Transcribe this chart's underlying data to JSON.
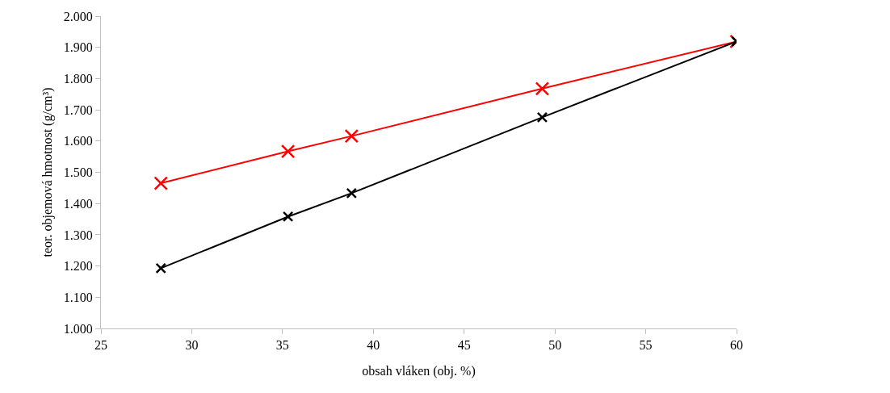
{
  "chart_data": {
    "type": "line",
    "xlabel": "obsah vláken (obj. %)",
    "ylabel": "teor. objemová hmotnost (g/cm³)",
    "x": [
      28.3,
      35.3,
      38.8,
      49.3,
      60
    ],
    "series": [
      {
        "color": "#ff0000",
        "values": [
          1.465,
          1.567,
          1.616,
          1.768,
          1.919
        ]
      },
      {
        "color": "#000000",
        "values": [
          1.193,
          1.358,
          1.433,
          1.676,
          1.919
        ]
      }
    ],
    "xlim": [
      25,
      60
    ],
    "xticks": [
      25,
      30,
      35,
      40,
      45,
      50,
      55,
      60
    ],
    "ylim": [
      1.0,
      2.0
    ],
    "yticks": [
      {
        "value": 1.0,
        "label": "1.000"
      },
      {
        "value": 1.1,
        "label": "1.100"
      },
      {
        "value": 1.2,
        "label": "1.200"
      },
      {
        "value": 1.3,
        "label": "1.300"
      },
      {
        "value": 1.4,
        "label": "1.400"
      },
      {
        "value": 1.5,
        "label": "1.500"
      },
      {
        "value": 1.6,
        "label": "1.600"
      },
      {
        "value": 1.7,
        "label": "1.700"
      },
      {
        "value": 1.8,
        "label": "1.800"
      },
      {
        "value": 1.9,
        "label": "1.900"
      },
      {
        "value": 2.0,
        "label": "2.000"
      }
    ],
    "grid": false,
    "marker": "cross",
    "line_style": "solid"
  }
}
